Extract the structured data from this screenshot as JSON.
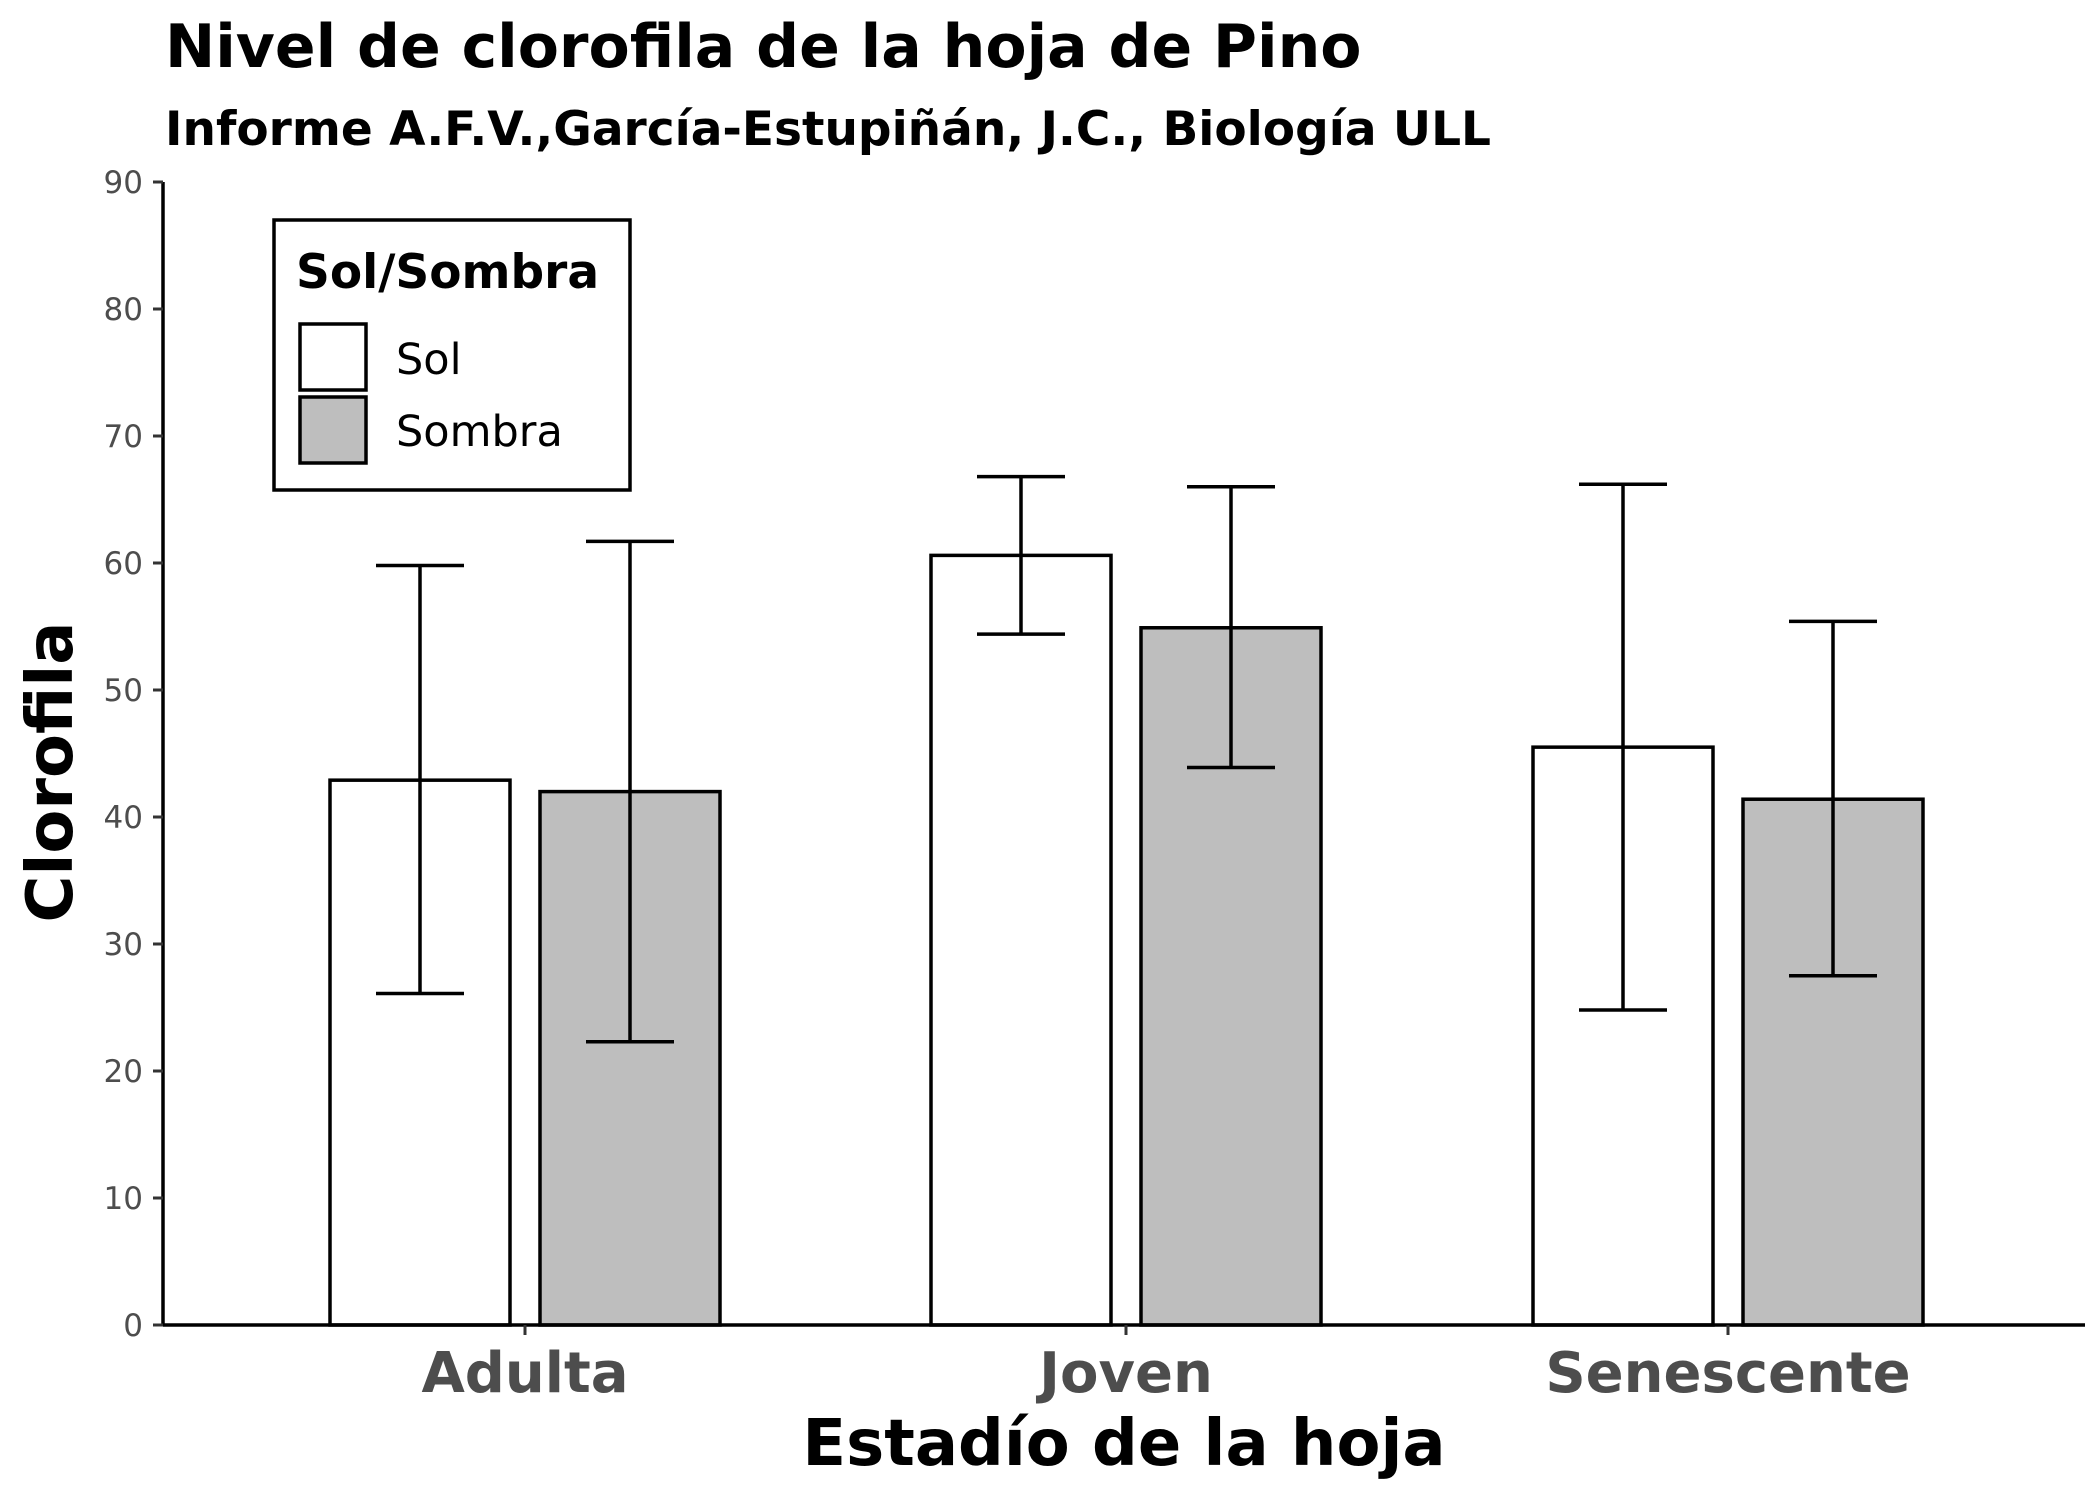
{
  "chart_data": {
    "type": "bar",
    "title": "Nivel de clorofila de la hoja de Pino",
    "subtitle": "Informe A.F.V.,García-Estupiñán, J.C., Biología ULL",
    "xlabel": "Estadío de la hoja",
    "ylabel": "Clorofila",
    "ylim": [
      0,
      90
    ],
    "yticks": [
      "0",
      "10",
      "20",
      "30",
      "40",
      "50",
      "60",
      "70",
      "80",
      "90"
    ],
    "categories": [
      "Adulta",
      "Joven",
      "Senescente"
    ],
    "legend": {
      "title": "Sol/Sombra",
      "placement": "top-left"
    },
    "grid": false,
    "series": [
      {
        "name": "Sol",
        "color": "#ffffff",
        "values": [
          42.9,
          60.6,
          45.5
        ],
        "error_low": [
          26.1,
          54.4,
          24.8
        ],
        "error_high": [
          59.8,
          66.8,
          66.2
        ]
      },
      {
        "name": "Sombra",
        "color": "#bebebe",
        "values": [
          42.0,
          54.9,
          41.4
        ],
        "error_low": [
          22.3,
          43.9,
          27.5
        ],
        "error_high": [
          61.7,
          66.0,
          55.4
        ]
      }
    ]
  }
}
